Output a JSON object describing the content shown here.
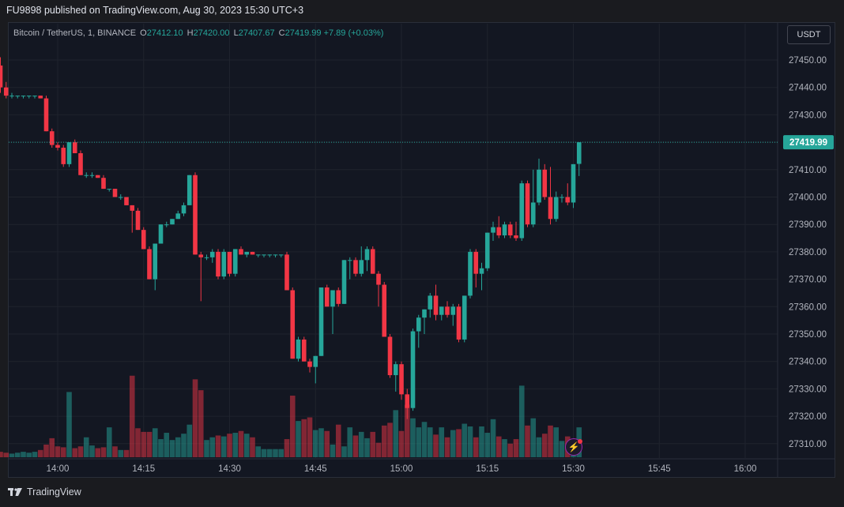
{
  "header": {
    "published_text": "FU9898 published on TradingView.com, Aug 30, 2023 15:30 UTC+3"
  },
  "legend": {
    "symbol": "Bitcoin / TetherUS, 1, BINANCE",
    "o_label": "O",
    "o_value": "27412.10",
    "h_label": "H",
    "h_value": "27420.00",
    "l_label": "L",
    "l_value": "27407.67",
    "c_label": "C",
    "c_value": "27419.99",
    "change": "+7.89 (+0.03%)"
  },
  "currency_button": "USDT",
  "footer": {
    "brand": "TradingView"
  },
  "colors": {
    "up": "#26a69a",
    "down": "#f23645",
    "bg": "#131722",
    "grid": "#1f232d"
  },
  "icons": {
    "alert": "lightning-icon",
    "logo": "tradingview-logo-icon"
  },
  "chart_data": {
    "type": "candlestick",
    "ylim": [
      27305,
      27458
    ],
    "y_ticks": [
      "27450.00",
      "27440.00",
      "27430.00",
      "27420.00",
      "27410.00",
      "27400.00",
      "27390.00",
      "27380.00",
      "27370.00",
      "27360.00",
      "27350.00",
      "27340.00",
      "27330.00",
      "27320.00",
      "27310.00"
    ],
    "y_tick_values": [
      27450,
      27440,
      27430,
      27420,
      27410,
      27400,
      27390,
      27380,
      27370,
      27360,
      27350,
      27340,
      27330,
      27320,
      27310
    ],
    "last_price": "27419.99",
    "last_price_value": 27419.99,
    "x_labels": [
      "14:00",
      "14:15",
      "14:30",
      "14:45",
      "15:00",
      "15:15",
      "15:30",
      "15:45",
      "16:00"
    ],
    "x_label_minutes": [
      840,
      855,
      870,
      885,
      900,
      915,
      930,
      945,
      960
    ],
    "candles": [
      {
        "t": 830,
        "o": 27448,
        "h": 27451,
        "l": 27438,
        "c": 27440,
        "v": 6
      },
      {
        "t": 831,
        "o": 27440,
        "h": 27442,
        "l": 27436,
        "c": 27437,
        "v": 5
      },
      {
        "t": 832,
        "o": 27437,
        "h": 27438,
        "l": 27436,
        "c": 27437,
        "v": 4
      },
      {
        "t": 833,
        "o": 27437,
        "h": 27437,
        "l": 27436,
        "c": 27437,
        "v": 5
      },
      {
        "t": 834,
        "o": 27437,
        "h": 27437,
        "l": 27436,
        "c": 27437,
        "v": 6
      },
      {
        "t": 835,
        "o": 27437,
        "h": 27437,
        "l": 27436,
        "c": 27437,
        "v": 5
      },
      {
        "t": 836,
        "o": 27437,
        "h": 27437,
        "l": 27436,
        "c": 27437,
        "v": 6
      },
      {
        "t": 837,
        "o": 27437,
        "h": 27437,
        "l": 27436,
        "c": 27436,
        "v": 8
      },
      {
        "t": 838,
        "o": 27436,
        "h": 27437,
        "l": 27424,
        "c": 27424,
        "v": 14
      },
      {
        "t": 839,
        "o": 27424,
        "h": 27425,
        "l": 27418,
        "c": 27419,
        "v": 21
      },
      {
        "t": 840,
        "o": 27419,
        "h": 27420,
        "l": 27417,
        "c": 27418,
        "v": 12
      },
      {
        "t": 841,
        "o": 27418,
        "h": 27419,
        "l": 27411,
        "c": 27412,
        "v": 11
      },
      {
        "t": 842,
        "o": 27412,
        "h": 27420,
        "l": 27411,
        "c": 27420,
        "v": 72
      },
      {
        "t": 843,
        "o": 27420,
        "h": 27421,
        "l": 27416,
        "c": 27416,
        "v": 10
      },
      {
        "t": 844,
        "o": 27416,
        "h": 27417,
        "l": 27408,
        "c": 27408,
        "v": 12
      },
      {
        "t": 845,
        "o": 27408,
        "h": 27409,
        "l": 27407,
        "c": 27408,
        "v": 22
      },
      {
        "t": 846,
        "o": 27408,
        "h": 27409,
        "l": 27407,
        "c": 27408,
        "v": 13
      },
      {
        "t": 847,
        "o": 27408,
        "h": 27408,
        "l": 27407,
        "c": 27407,
        "v": 10
      },
      {
        "t": 848,
        "o": 27407,
        "h": 27408,
        "l": 27403,
        "c": 27403,
        "v": 11
      },
      {
        "t": 849,
        "o": 27403,
        "h": 27403,
        "l": 27402,
        "c": 27403,
        "v": 33
      },
      {
        "t": 850,
        "o": 27403,
        "h": 27403,
        "l": 27400,
        "c": 27400,
        "v": 12
      },
      {
        "t": 851,
        "o": 27400,
        "h": 27401,
        "l": 27399,
        "c": 27400,
        "v": 8
      },
      {
        "t": 852,
        "o": 27400,
        "h": 27400,
        "l": 27397,
        "c": 27397,
        "v": 8
      },
      {
        "t": 853,
        "o": 27397,
        "h": 27397,
        "l": 27387,
        "c": 27395,
        "v": 90
      },
      {
        "t": 854,
        "o": 27395,
        "h": 27396,
        "l": 27388,
        "c": 27388,
        "v": 32
      },
      {
        "t": 855,
        "o": 27388,
        "h": 27389,
        "l": 27381,
        "c": 27381,
        "v": 28
      },
      {
        "t": 856,
        "o": 27381,
        "h": 27382,
        "l": 27370,
        "c": 27370,
        "v": 28
      },
      {
        "t": 857,
        "o": 27370,
        "h": 27383,
        "l": 27366,
        "c": 27383,
        "v": 32
      },
      {
        "t": 858,
        "o": 27383,
        "h": 27390,
        "l": 27383,
        "c": 27390,
        "v": 20
      },
      {
        "t": 859,
        "o": 27390,
        "h": 27391,
        "l": 27389,
        "c": 27390,
        "v": 27
      },
      {
        "t": 860,
        "o": 27390,
        "h": 27392,
        "l": 27390,
        "c": 27392,
        "v": 19
      },
      {
        "t": 861,
        "o": 27392,
        "h": 27395,
        "l": 27392,
        "c": 27394,
        "v": 22
      },
      {
        "t": 862,
        "o": 27394,
        "h": 27398,
        "l": 27393,
        "c": 27397,
        "v": 26
      },
      {
        "t": 863,
        "o": 27397,
        "h": 27408,
        "l": 27397,
        "c": 27408,
        "v": 36
      },
      {
        "t": 864,
        "o": 27408,
        "h": 27409,
        "l": 27379,
        "c": 27379,
        "v": 86
      },
      {
        "t": 865,
        "o": 27379,
        "h": 27380,
        "l": 27362,
        "c": 27378,
        "v": 74
      },
      {
        "t": 866,
        "o": 27378,
        "h": 27379,
        "l": 27377,
        "c": 27378,
        "v": 19
      },
      {
        "t": 867,
        "o": 27378,
        "h": 27381,
        "l": 27376,
        "c": 27380,
        "v": 22
      },
      {
        "t": 868,
        "o": 27380,
        "h": 27381,
        "l": 27370,
        "c": 27371,
        "v": 24
      },
      {
        "t": 869,
        "o": 27371,
        "h": 27381,
        "l": 27370,
        "c": 27380,
        "v": 23
      },
      {
        "t": 870,
        "o": 27380,
        "h": 27380,
        "l": 27371,
        "c": 27372,
        "v": 26
      },
      {
        "t": 871,
        "o": 27372,
        "h": 27381,
        "l": 27371,
        "c": 27381,
        "v": 27
      },
      {
        "t": 872,
        "o": 27381,
        "h": 27382,
        "l": 27379,
        "c": 27379,
        "v": 29
      },
      {
        "t": 873,
        "o": 27379,
        "h": 27380,
        "l": 27378,
        "c": 27380,
        "v": 26
      },
      {
        "t": 874,
        "o": 27380,
        "h": 27380,
        "l": 27379,
        "c": 27379,
        "v": 22
      },
      {
        "t": 875,
        "o": 27379,
        "h": 27379,
        "l": 27378,
        "c": 27379,
        "v": 12
      },
      {
        "t": 876,
        "o": 27379,
        "h": 27379,
        "l": 27378,
        "c": 27379,
        "v": 9
      },
      {
        "t": 877,
        "o": 27379,
        "h": 27379,
        "l": 27378,
        "c": 27379,
        "v": 9
      },
      {
        "t": 878,
        "o": 27379,
        "h": 27379,
        "l": 27378,
        "c": 27379,
        "v": 9
      },
      {
        "t": 879,
        "o": 27379,
        "h": 27379,
        "l": 27378,
        "c": 27379,
        "v": 9
      },
      {
        "t": 880,
        "o": 27379,
        "h": 27380,
        "l": 27366,
        "c": 27366,
        "v": 20
      },
      {
        "t": 881,
        "o": 27366,
        "h": 27367,
        "l": 27341,
        "c": 27341,
        "v": 68
      },
      {
        "t": 882,
        "o": 27341,
        "h": 27349,
        "l": 27340,
        "c": 27348,
        "v": 40
      },
      {
        "t": 883,
        "o": 27348,
        "h": 27349,
        "l": 27340,
        "c": 27340,
        "v": 42
      },
      {
        "t": 884,
        "o": 27340,
        "h": 27341,
        "l": 27336,
        "c": 27338,
        "v": 44
      },
      {
        "t": 885,
        "o": 27338,
        "h": 27342,
        "l": 27332,
        "c": 27342,
        "v": 30
      },
      {
        "t": 886,
        "o": 27342,
        "h": 27367,
        "l": 27342,
        "c": 27367,
        "v": 32
      },
      {
        "t": 887,
        "o": 27367,
        "h": 27368,
        "l": 27360,
        "c": 27360,
        "v": 29
      },
      {
        "t": 888,
        "o": 27360,
        "h": 27366,
        "l": 27350,
        "c": 27366,
        "v": 14
      },
      {
        "t": 889,
        "o": 27366,
        "h": 27367,
        "l": 27360,
        "c": 27361,
        "v": 36
      },
      {
        "t": 890,
        "o": 27361,
        "h": 27377,
        "l": 27361,
        "c": 27377,
        "v": 12
      },
      {
        "t": 891,
        "o": 27377,
        "h": 27378,
        "l": 27370,
        "c": 27377,
        "v": 33
      },
      {
        "t": 892,
        "o": 27377,
        "h": 27378,
        "l": 27371,
        "c": 27372,
        "v": 24
      },
      {
        "t": 893,
        "o": 27372,
        "h": 27382,
        "l": 27371,
        "c": 27377,
        "v": 28
      },
      {
        "t": 894,
        "o": 27377,
        "h": 27382,
        "l": 27373,
        "c": 27381,
        "v": 21
      },
      {
        "t": 895,
        "o": 27381,
        "h": 27382,
        "l": 27372,
        "c": 27372,
        "v": 28
      },
      {
        "t": 896,
        "o": 27372,
        "h": 27373,
        "l": 27360,
        "c": 27368,
        "v": 16
      },
      {
        "t": 897,
        "o": 27368,
        "h": 27369,
        "l": 27349,
        "c": 27349,
        "v": 35
      },
      {
        "t": 898,
        "o": 27349,
        "h": 27350,
        "l": 27334,
        "c": 27335,
        "v": 38
      },
      {
        "t": 899,
        "o": 27335,
        "h": 27340,
        "l": 27329,
        "c": 27339,
        "v": 52
      },
      {
        "t": 900,
        "o": 27339,
        "h": 27340,
        "l": 27326,
        "c": 27328,
        "v": 29
      },
      {
        "t": 901,
        "o": 27328,
        "h": 27330,
        "l": 27319,
        "c": 27323,
        "v": 58
      },
      {
        "t": 902,
        "o": 27323,
        "h": 27352,
        "l": 27322,
        "c": 27351,
        "v": 43
      },
      {
        "t": 903,
        "o": 27351,
        "h": 27357,
        "l": 27345,
        "c": 27356,
        "v": 33
      },
      {
        "t": 904,
        "o": 27356,
        "h": 27359,
        "l": 27350,
        "c": 27359,
        "v": 39
      },
      {
        "t": 905,
        "o": 27359,
        "h": 27365,
        "l": 27356,
        "c": 27364,
        "v": 33
      },
      {
        "t": 906,
        "o": 27364,
        "h": 27368,
        "l": 27355,
        "c": 27357,
        "v": 25
      },
      {
        "t": 907,
        "o": 27357,
        "h": 27360,
        "l": 27355,
        "c": 27360,
        "v": 33
      },
      {
        "t": 908,
        "o": 27360,
        "h": 27362,
        "l": 27356,
        "c": 27357,
        "v": 22
      },
      {
        "t": 909,
        "o": 27357,
        "h": 27361,
        "l": 27353,
        "c": 27360,
        "v": 30
      },
      {
        "t": 910,
        "o": 27360,
        "h": 27361,
        "l": 27347,
        "c": 27348,
        "v": 31
      },
      {
        "t": 911,
        "o": 27348,
        "h": 27364,
        "l": 27347,
        "c": 27364,
        "v": 37
      },
      {
        "t": 912,
        "o": 27364,
        "h": 27381,
        "l": 27363,
        "c": 27380,
        "v": 34
      },
      {
        "t": 913,
        "o": 27380,
        "h": 27381,
        "l": 27367,
        "c": 27372,
        "v": 22
      },
      {
        "t": 914,
        "o": 27372,
        "h": 27376,
        "l": 27366,
        "c": 27374,
        "v": 34
      },
      {
        "t": 915,
        "o": 27374,
        "h": 27387,
        "l": 27373,
        "c": 27387,
        "v": 27
      },
      {
        "t": 916,
        "o": 27387,
        "h": 27391,
        "l": 27384,
        "c": 27389,
        "v": 42
      },
      {
        "t": 917,
        "o": 27389,
        "h": 27393,
        "l": 27385,
        "c": 27386,
        "v": 23
      },
      {
        "t": 918,
        "o": 27386,
        "h": 27391,
        "l": 27385,
        "c": 27390,
        "v": 20
      },
      {
        "t": 919,
        "o": 27390,
        "h": 27391,
        "l": 27385,
        "c": 27386,
        "v": 15
      },
      {
        "t": 920,
        "o": 27386,
        "h": 27391,
        "l": 27384,
        "c": 27385,
        "v": 20
      },
      {
        "t": 921,
        "o": 27385,
        "h": 27406,
        "l": 27384,
        "c": 27405,
        "v": 79
      },
      {
        "t": 922,
        "o": 27405,
        "h": 27406,
        "l": 27389,
        "c": 27390,
        "v": 35
      },
      {
        "t": 923,
        "o": 27390,
        "h": 27410,
        "l": 27389,
        "c": 27398,
        "v": 43
      },
      {
        "t": 924,
        "o": 27398,
        "h": 27414,
        "l": 27397,
        "c": 27410,
        "v": 22
      },
      {
        "t": 925,
        "o": 27410,
        "h": 27412,
        "l": 27399,
        "c": 27400,
        "v": 26
      },
      {
        "t": 926,
        "o": 27400,
        "h": 27411,
        "l": 27390,
        "c": 27392,
        "v": 35
      },
      {
        "t": 927,
        "o": 27392,
        "h": 27402,
        "l": 27391,
        "c": 27400,
        "v": 33
      },
      {
        "t": 928,
        "o": 27400,
        "h": 27401,
        "l": 27398,
        "c": 27400,
        "v": 18
      },
      {
        "t": 929,
        "o": 27400,
        "h": 27405,
        "l": 27397,
        "c": 27398,
        "v": 23
      },
      {
        "t": 930,
        "o": 27398,
        "h": 27412,
        "l": 27396,
        "c": 27412,
        "v": 14
      },
      {
        "t": 931,
        "o": 27412.1,
        "h": 27420,
        "l": 27407.67,
        "c": 27419.99,
        "v": 33
      }
    ]
  }
}
